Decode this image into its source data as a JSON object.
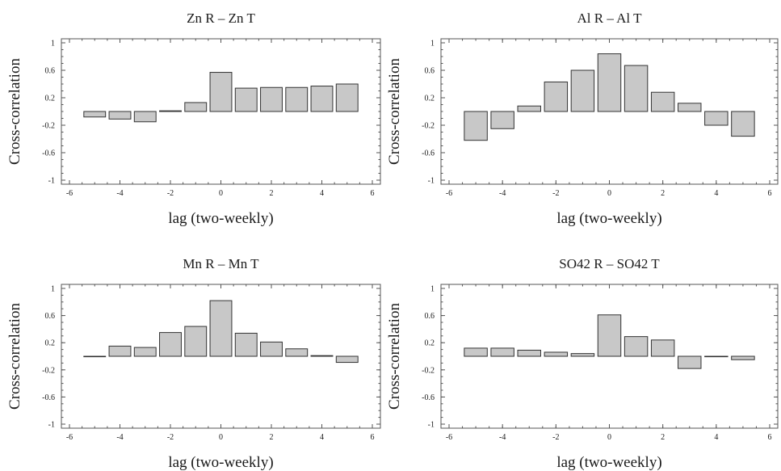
{
  "figure": {
    "colors": {
      "bar_fill": "#c8c8c8",
      "bar_stroke": "#333333",
      "frame": "#555555"
    }
  },
  "chart_data": [
    {
      "type": "bar",
      "title": "Zn  R –  Zn  T",
      "xlabel": "lag (two-weekly)",
      "ylabel": "Cross-correlation",
      "xlim": [
        -6,
        6
      ],
      "ylim": [
        -1,
        1
      ],
      "xticks": [
        -6,
        -4,
        -2,
        0,
        2,
        4,
        6
      ],
      "yticks": [
        -1,
        -0.6,
        -0.2,
        0.2,
        0.6,
        1
      ],
      "ytick_labels": [
        "-1",
        "-0.6",
        "-0.2",
        "0.2",
        "0.6",
        "1"
      ],
      "grid": false,
      "x": [
        -5,
        -4,
        -3,
        -2,
        -1,
        0,
        1,
        2,
        3,
        4,
        5
      ],
      "values": [
        -0.08,
        -0.11,
        -0.15,
        0.01,
        0.13,
        0.57,
        0.34,
        0.35,
        0.35,
        0.37,
        0.4
      ]
    },
    {
      "type": "bar",
      "title": "Al R –  Al T",
      "xlabel": "lag (two-weekly)",
      "ylabel": "Cross-correlation",
      "xlim": [
        -6,
        6
      ],
      "ylim": [
        -1,
        1
      ],
      "xticks": [
        -6,
        -4,
        -2,
        0,
        2,
        4,
        6
      ],
      "yticks": [
        -1,
        -0.6,
        -0.2,
        0.2,
        0.6,
        1
      ],
      "ytick_labels": [
        "-1",
        "-0.6",
        "-0.2",
        "0.2",
        "0.6",
        "1"
      ],
      "grid": false,
      "x": [
        -5,
        -4,
        -3,
        -2,
        -1,
        0,
        1,
        2,
        3,
        4,
        5
      ],
      "values": [
        -0.42,
        -0.25,
        0.08,
        0.43,
        0.6,
        0.84,
        0.67,
        0.28,
        0.12,
        -0.2,
        -0.36
      ]
    },
    {
      "type": "bar",
      "title": "Mn  R –  Mn  T",
      "xlabel": "lag (two-weekly)",
      "ylabel": "Cross-correlation",
      "xlim": [
        -6,
        6
      ],
      "ylim": [
        -1,
        1
      ],
      "xticks": [
        -6,
        -4,
        -2,
        0,
        2,
        4,
        6
      ],
      "yticks": [
        -1,
        -0.6,
        -0.2,
        0.2,
        0.6,
        1
      ],
      "ytick_labels": [
        "-1",
        "-0.6",
        "-0.2",
        "0.2",
        "0.6",
        "1"
      ],
      "grid": false,
      "x": [
        -5,
        -4,
        -3,
        -2,
        -1,
        0,
        1,
        2,
        3,
        4,
        5
      ],
      "values": [
        0.0,
        0.15,
        0.13,
        0.35,
        0.44,
        0.82,
        0.34,
        0.21,
        0.11,
        0.01,
        -0.09
      ]
    },
    {
      "type": "bar",
      "title": "SO42  R –  SO42 T",
      "xlabel": "lag (two-weekly)",
      "ylabel": "Cross-correlation",
      "xlim": [
        -6,
        6
      ],
      "ylim": [
        -1,
        1
      ],
      "xticks": [
        -6,
        -4,
        -2,
        0,
        2,
        4,
        6
      ],
      "yticks": [
        -1,
        -0.6,
        -0.2,
        0.2,
        0.6,
        1
      ],
      "ytick_labels": [
        "-1",
        "-0.6",
        "-0.2",
        "0.2",
        "0.6",
        "1"
      ],
      "grid": false,
      "x": [
        -5,
        -4,
        -3,
        -2,
        -1,
        0,
        1,
        2,
        3,
        4,
        5
      ],
      "values": [
        0.12,
        0.12,
        0.09,
        0.06,
        0.04,
        0.61,
        0.29,
        0.24,
        -0.18,
        0.0,
        -0.05
      ]
    }
  ]
}
